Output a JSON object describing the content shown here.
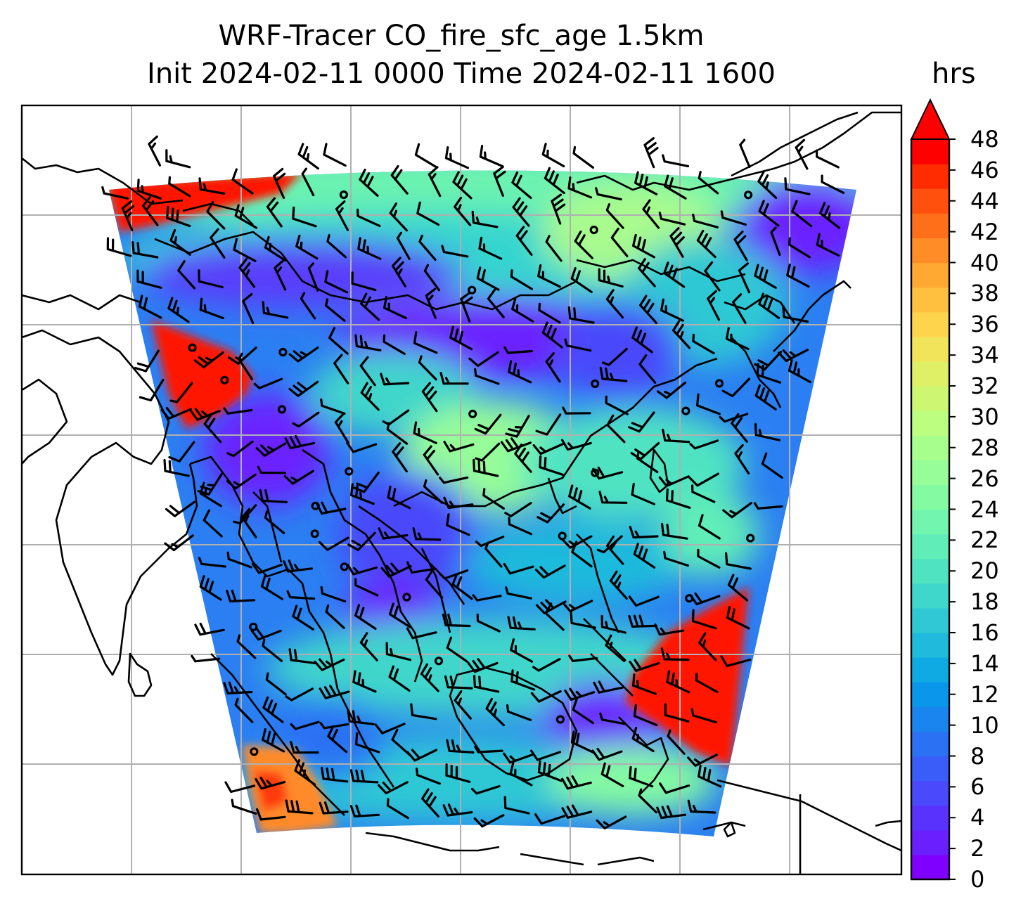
{
  "title": {
    "line1": "WRF-Tracer CO_fire_sfc_age 1.5km",
    "line2": "Init 2024-02-11 0000 Time 2024-02-11 1600"
  },
  "colorbar": {
    "unit": "hrs",
    "ticks": [
      "0",
      "2",
      "4",
      "6",
      "8",
      "10",
      "12",
      "14",
      "16",
      "18",
      "20",
      "22",
      "24",
      "26",
      "28",
      "30",
      "32",
      "34",
      "36",
      "38",
      "40",
      "42",
      "44",
      "46",
      "48"
    ],
    "min": 0,
    "max": 48,
    "extend": "max",
    "colormap": "rainbow",
    "colors": [
      "#7f00ff",
      "#6a1fff",
      "#5a32fd",
      "#4a49fb",
      "#3a5cf8",
      "#2a71f4",
      "#1a84ef",
      "#0a96ea",
      "#0fa9e3",
      "#1fbadc",
      "#2fc8d4",
      "#3fd6cb",
      "#4fe3c2",
      "#60edb8",
      "#72f5ae",
      "#84faa3",
      "#96fd98",
      "#a8fe8c",
      "#bcfe80",
      "#cdf773",
      "#dff067",
      "#f1e35a",
      "#ffd44d",
      "#ffbf3f",
      "#ffa832",
      "#ff8c26",
      "#ff6f19",
      "#ff500d",
      "#ff2c02",
      "#ff0000"
    ],
    "overflow_color": "#ff0000"
  },
  "map": {
    "grid": "on",
    "colors": {
      "frame": "#000000",
      "grid": "#b0b0b0",
      "coast": "#000000",
      "barb": "#000000",
      "fire_region": "#ff1500"
    }
  }
}
